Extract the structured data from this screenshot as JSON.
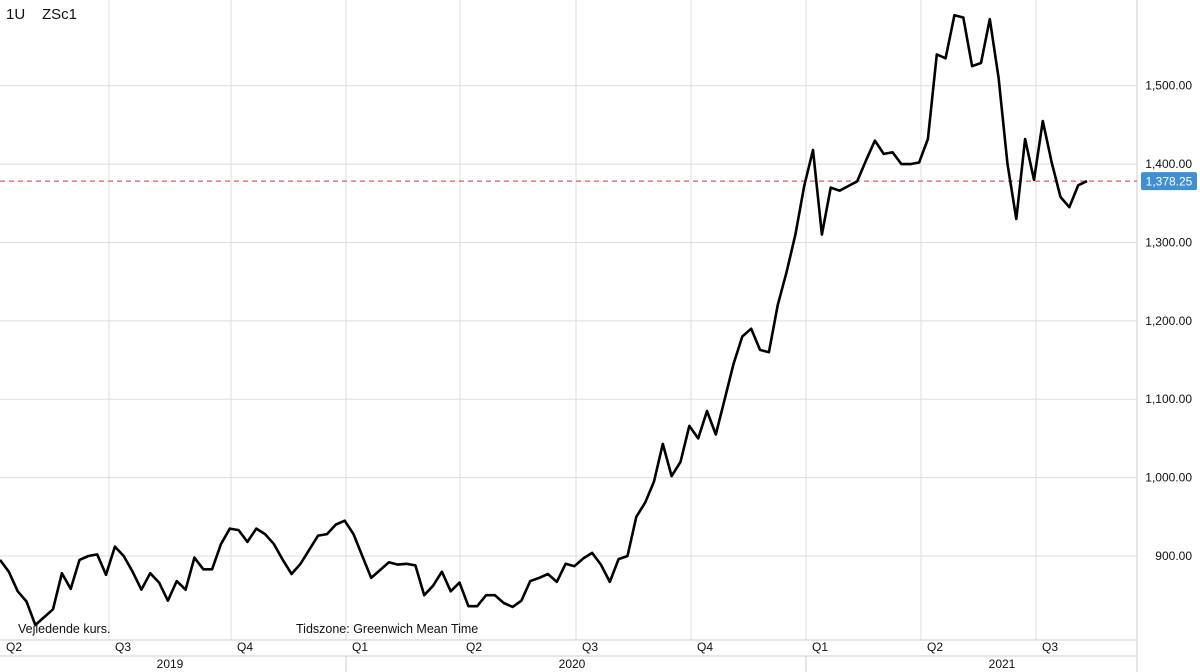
{
  "header": {
    "interval": "1U",
    "symbol": "ZSc1"
  },
  "footer": {
    "price_note": "Vejledende kurs.",
    "timezone": "Tidszone: Greenwich Mean Time"
  },
  "colors": {
    "line": "#000000",
    "grid": "#dddddd",
    "last_price_line": "#e05a5a",
    "last_price_badge": "#3f8fd2"
  },
  "chart_data": {
    "type": "line",
    "series": [
      {
        "values": [
          895,
          880,
          855,
          842,
          812,
          822,
          832,
          878,
          858,
          895,
          900,
          902,
          876,
          912,
          900,
          880,
          857,
          878,
          866,
          843,
          868,
          857,
          898,
          883,
          883,
          915,
          935,
          933,
          918,
          935,
          928,
          915,
          895,
          877,
          890,
          908,
          926,
          928,
          940,
          945,
          928,
          900,
          872,
          882,
          892,
          889,
          890,
          888,
          850,
          862,
          880,
          855,
          866,
          836,
          836,
          850,
          850,
          840,
          835,
          843,
          868,
          872,
          877,
          867,
          890,
          887,
          897,
          904,
          889,
          867,
          896,
          900,
          950,
          968,
          995,
          1043,
          1002,
          1020,
          1066,
          1050,
          1085,
          1055,
          1100,
          1145,
          1180,
          1190,
          1163,
          1160,
          1220,
          1262,
          1310,
          1372,
          1418,
          1310,
          1370,
          1366,
          1372,
          1378,
          1405,
          1430,
          1413,
          1415,
          1400,
          1400,
          1402,
          1432,
          1540,
          1535,
          1590,
          1587,
          1525,
          1529,
          1585,
          1510,
          1400,
          1330,
          1432,
          1380,
          1455,
          1402,
          1358,
          1345,
          1373,
          1378.25
        ]
      }
    ],
    "y_ticks": [
      "900.00",
      "1,000.00",
      "1,100.00",
      "1,200.00",
      "1,300.00",
      "1,400.00",
      "1,500.00"
    ],
    "ylim": [
      797,
      1600
    ],
    "last_price": 1378.25,
    "last_price_label": "1,378.25",
    "quarter_labels": [
      "Q2",
      "Q3",
      "Q4",
      "Q1",
      "Q2",
      "Q3",
      "Q4",
      "Q1",
      "Q2",
      "Q3"
    ],
    "year_labels": [
      "2019",
      "2020",
      "2021"
    ],
    "grid": true
  }
}
